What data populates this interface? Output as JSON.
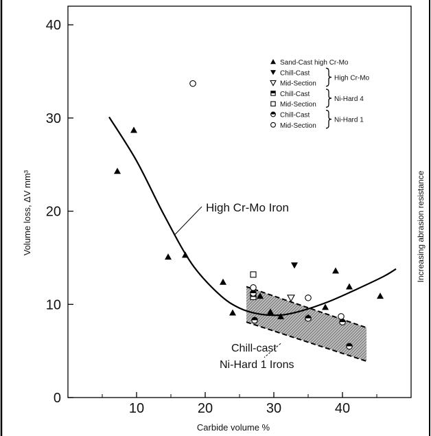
{
  "chart_data": {
    "type": "scatter",
    "xlabel": "Carbide volume %",
    "ylabel": "Volume loss, ΔV mm³",
    "side_label": "Increasing abrasion resistance",
    "xlim": [
      0,
      50
    ],
    "ylim": [
      0,
      42
    ],
    "xticks": [
      10,
      20,
      30,
      40
    ],
    "yticks": [
      0,
      10,
      20,
      30,
      40
    ],
    "grid": false,
    "legend_position": "top-right",
    "legend": [
      {
        "marker": "filled-triangle-up",
        "label": "Sand-Cast high Cr-Mo",
        "group": ""
      },
      {
        "marker": "filled-triangle-down",
        "label": "Chill-Cast",
        "group": "High Cr-Mo"
      },
      {
        "marker": "open-triangle-down",
        "label": "Mid-Section",
        "group": "High Cr-Mo"
      },
      {
        "marker": "half-square",
        "label": "Chill-Cast",
        "group": "Ni-Hard 4"
      },
      {
        "marker": "open-square",
        "label": "Mid-Section",
        "group": "Ni-Hard 4"
      },
      {
        "marker": "half-circle",
        "label": "Chill-Cast",
        "group": "Ni-Hard 1"
      },
      {
        "marker": "open-circle",
        "label": "Mid-Section",
        "group": "Ni-Hard 1"
      }
    ],
    "legend_groups": [
      "High Cr-Mo",
      "Ni-Hard 4",
      "Ni-Hard 1"
    ],
    "series": [
      {
        "name": "Sand-Cast high Cr-Mo",
        "marker": "filled-triangle-up",
        "x": [
          7.2,
          9.6,
          14.6,
          17.1,
          22.6,
          24.0,
          28.0,
          29.5,
          31.0,
          35.0,
          37.5,
          39.0,
          41.0,
          45.5
        ],
        "y": [
          24.3,
          28.7,
          15.1,
          15.3,
          12.4,
          9.1,
          10.9,
          9.2,
          8.7,
          8.6,
          9.7,
          13.6,
          11.9,
          10.9
        ]
      },
      {
        "name": "Chill-Cast",
        "marker": "filled-triangle-down",
        "x": [
          33.0
        ],
        "y": [
          14.2
        ]
      },
      {
        "name": "Mid-Section",
        "marker": "open-triangle-down",
        "x": [
          32.5
        ],
        "y": [
          10.7
        ]
      },
      {
        "name": "Chill-Cast",
        "marker": "half-square",
        "x": [
          27.0
        ],
        "y": [
          10.8
        ]
      },
      {
        "name": "Mid-Section",
        "marker": "open-square",
        "x": [
          27.0
        ],
        "y": [
          13.2
        ]
      },
      {
        "name": "Chill-Cast",
        "marker": "half-circle",
        "x": [
          27.0,
          27.2,
          35.0,
          40.0,
          41.0
        ],
        "y": [
          11.2,
          8.3,
          8.5,
          8.1,
          5.5
        ]
      },
      {
        "name": "Mid-Section",
        "marker": "open-circle",
        "x": [
          18.2,
          27.0,
          35.0,
          39.8
        ],
        "y": [
          33.7,
          11.8,
          10.7,
          8.7
        ]
      }
    ],
    "curve": {
      "label": "High Cr-Mo Iron",
      "x": [
        6,
        10,
        14,
        18,
        22,
        25,
        28,
        31,
        34,
        38,
        42,
        46,
        47.8
      ],
      "y": [
        30.1,
        25.4,
        19.6,
        14.4,
        11.1,
        9.6,
        8.95,
        8.85,
        9.3,
        10.3,
        11.6,
        13.0,
        13.8
      ]
    },
    "band": {
      "label_lines": [
        "Chill-cast",
        "Ni-Hard 1 Irons"
      ],
      "upper_x": [
        26,
        43.5
      ],
      "upper_y": [
        11.9,
        7.5
      ],
      "lower_x": [
        26,
        43.5
      ],
      "lower_y": [
        8.1,
        3.9
      ]
    }
  }
}
